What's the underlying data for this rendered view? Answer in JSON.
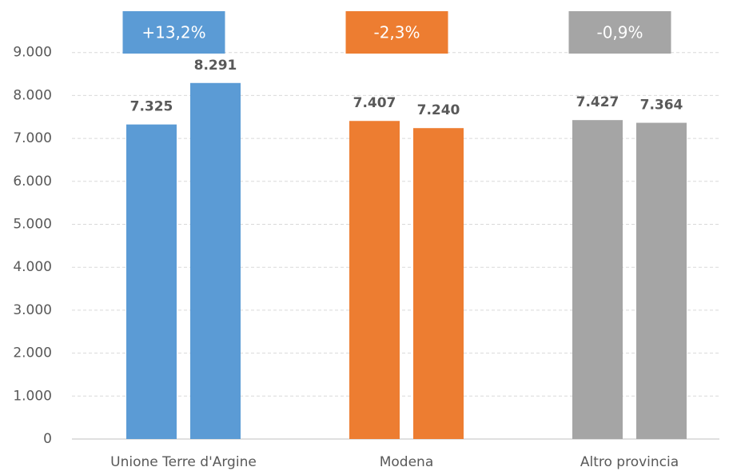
{
  "chart_data": {
    "type": "bar",
    "categories": [
      "Unione Terre d'Argine",
      "Modena",
      "Altro provincia"
    ],
    "colors": [
      "#5b9bd5",
      "#ed7d31",
      "#a5a5a5"
    ],
    "series": [
      {
        "values": [
          7325,
          7407,
          7427
        ],
        "value_labels": [
          "7.325",
          "7.407",
          "7.427"
        ]
      },
      {
        "values": [
          8291,
          7240,
          7364
        ],
        "value_labels": [
          "8.291",
          "7.240",
          "7.364"
        ]
      }
    ],
    "annotations": [
      "+13,2%",
      "-2,3%",
      "-0,9%"
    ],
    "ylim": [
      0,
      10000
    ],
    "yticks": [
      0,
      {
        "value": 1000,
        "label": "1.000"
      },
      {
        "value": 2000,
        "label": "2.000"
      },
      {
        "value": 3000,
        "label": "3.000"
      },
      {
        "value": 4000,
        "label": "4.000"
      },
      {
        "value": 5000,
        "label": "5.000"
      },
      {
        "value": 6000,
        "label": "6.000"
      },
      {
        "value": 7000,
        "label": "7.000"
      },
      {
        "value": 8000,
        "label": "8.000"
      },
      {
        "value": 9000,
        "label": "9.000"
      }
    ],
    "grid": true
  }
}
